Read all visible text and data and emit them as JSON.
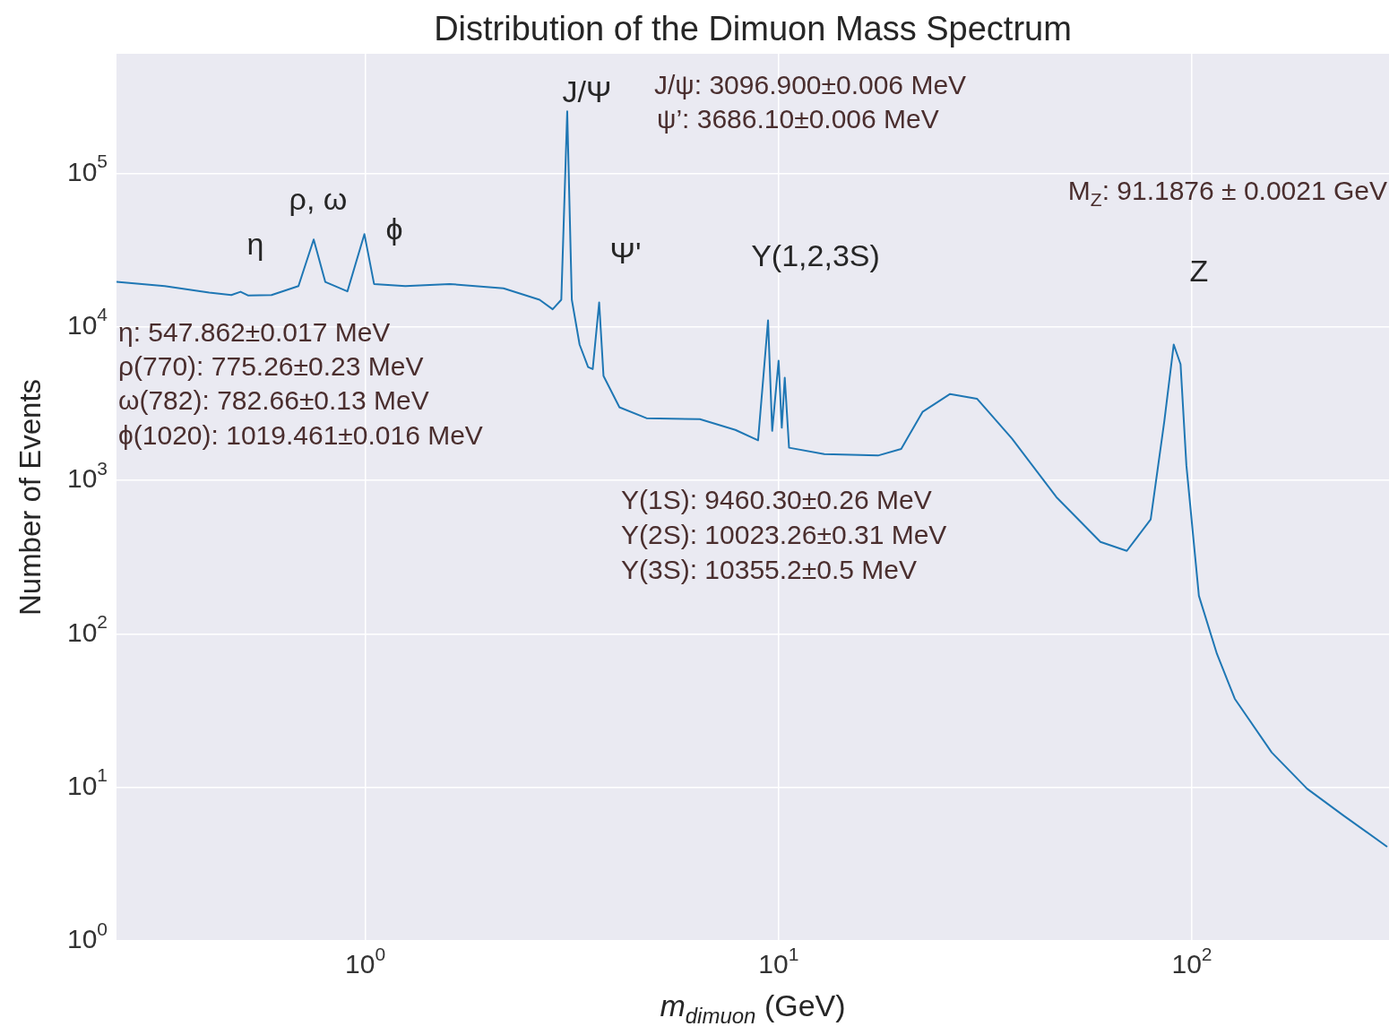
{
  "chart_data": {
    "type": "line",
    "title": "Distribution of the Dimuon Mass Spectrum",
    "xlabel": "m$_{dimuon}$ (GeV)",
    "ylabel": "Number of Events",
    "log": "xy",
    "grid": true,
    "legend": false,
    "marker": "none",
    "xlim": [
      0.25,
      300
    ],
    "ylim": [
      1,
      600000
    ],
    "xticks": [
      {
        "value": 1,
        "label": "10$^{0}$"
      },
      {
        "value": 10,
        "label": "10$^{1}$"
      },
      {
        "value": 100,
        "label": "10$^{2}$"
      }
    ],
    "yticks": [
      {
        "value": 1,
        "label": "10$^{0}$"
      },
      {
        "value": 10,
        "label": "10$^{1}$"
      },
      {
        "value": 100,
        "label": "10$^{2}$"
      },
      {
        "value": 1000,
        "label": "10$^{3}$"
      },
      {
        "value": 10000,
        "label": "10$^{4}$"
      },
      {
        "value": 100000,
        "label": "10$^{5}$"
      }
    ],
    "series": [
      {
        "color": "#1f77b4",
        "x": [
          0.25,
          0.327,
          0.419,
          0.474,
          0.499,
          0.52,
          0.593,
          0.689,
          0.75,
          0.8,
          0.905,
          0.995,
          1.05,
          1.25,
          1.6,
          2.16,
          2.64,
          2.84,
          2.98,
          3.08,
          3.16,
          3.3,
          3.46,
          3.55,
          3.68,
          3.77,
          4.12,
          4.79,
          6.45,
          7.86,
          8.92,
          9.43,
          9.65,
          10.0,
          10.18,
          10.35,
          10.6,
          12.9,
          17.4,
          19.8,
          22.3,
          26.0,
          30.2,
          36.7,
          47.0,
          60.1,
          69.6,
          79.5,
          85.8,
          90.4,
          93.9,
          97.0,
          104,
          115,
          127,
          156,
          190,
          232,
          297
        ],
        "values": [
          19600,
          18400,
          16700,
          16100,
          16900,
          16000,
          16100,
          18400,
          37000,
          19600,
          17000,
          40100,
          19000,
          18400,
          19000,
          17800,
          15000,
          13000,
          15000,
          253000,
          15000,
          7660,
          5470,
          5300,
          14400,
          4790,
          2990,
          2540,
          2500,
          2130,
          1820,
          11000,
          2100,
          6010,
          2200,
          4660,
          1630,
          1480,
          1450,
          1600,
          2790,
          3650,
          3400,
          1870,
          778,
          397,
          347,
          556,
          2440,
          7660,
          5700,
          1250,
          177,
          74,
          37.8,
          16.9,
          9.8,
          6.6,
          4.1
        ]
      }
    ],
    "annotations": [
      "η",
      "ρ, ω",
      "ϕ",
      "J/Ψ",
      "Ψ'",
      "Υ(1,2,3S)",
      "Z",
      "J/ψ: 3096.900±0.006 MeV",
      "ψ’: 3686.10±0.006 MeV",
      "M$_{Z}$: 91.1876 ± 0.0021 GeV",
      "η: 547.862±0.017 MeV",
      "ρ(770): 775.26±0.23 MeV",
      "ω(782): 782.66±0.13 MeV",
      "ϕ(1020): 1019.461±0.016 MeV",
      "Υ(1S): 9460.30±0.26 MeV",
      "Υ(2S): 10023.26±0.31 MeV",
      "Υ(3S): 10355.2±0.5 MeV"
    ]
  }
}
